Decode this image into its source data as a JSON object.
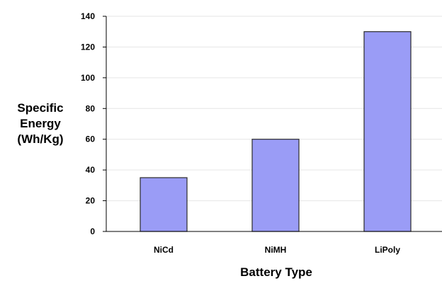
{
  "chart_data": {
    "type": "bar",
    "title": "",
    "categories": [
      "NiCd",
      "NiMH",
      "LiPoly"
    ],
    "values": [
      35,
      60,
      130
    ],
    "xlabel": "Battery Type",
    "ylabel": [
      "Specific",
      "Energy",
      "(Wh/Kg)"
    ],
    "ylim": [
      0,
      140
    ],
    "yticks": [
      0,
      20,
      40,
      60,
      80,
      100,
      120,
      140
    ],
    "grid": true,
    "legend": "none",
    "colors": {
      "bar_fill": "#9a9cf6",
      "bar_stroke": "#2b2b2b",
      "grid": "#e6e6e6",
      "axis": "#000000"
    }
  }
}
